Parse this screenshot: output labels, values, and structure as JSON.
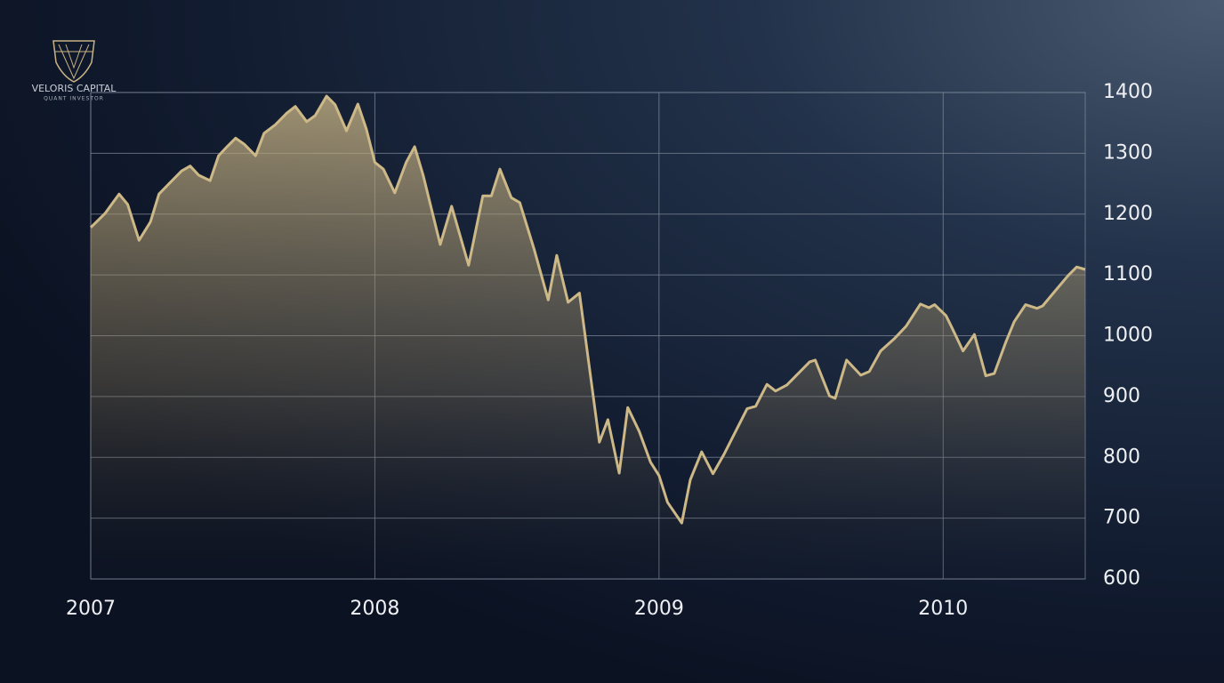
{
  "brand": {
    "name": "VELORIS CAPITAL",
    "tagline": "QUANT INVESTOR"
  },
  "chart_data": {
    "type": "area",
    "x": [
      2007.0,
      2007.05,
      2007.1,
      2007.13,
      2007.17,
      2007.21,
      2007.24,
      2007.28,
      2007.32,
      2007.35,
      2007.38,
      2007.42,
      2007.45,
      2007.48,
      2007.51,
      2007.54,
      2007.58,
      2007.61,
      2007.65,
      2007.69,
      2007.72,
      2007.76,
      2007.79,
      2007.83,
      2007.86,
      2007.9,
      2007.94,
      2007.97,
      2008.0,
      2008.03,
      2008.07,
      2008.11,
      2008.14,
      2008.17,
      2008.23,
      2008.27,
      2008.33,
      2008.38,
      2008.41,
      2008.44,
      2008.48,
      2008.51,
      2008.56,
      2008.61,
      2008.64,
      2008.68,
      2008.72,
      2008.79,
      2008.82,
      2008.86,
      2008.89,
      2008.93,
      2008.97,
      2009.0,
      2009.03,
      2009.08,
      2009.11,
      2009.15,
      2009.19,
      2009.23,
      2009.27,
      2009.31,
      2009.34,
      2009.38,
      2009.41,
      2009.45,
      2009.49,
      2009.53,
      2009.55,
      2009.6,
      2009.62,
      2009.66,
      2009.71,
      2009.74,
      2009.78,
      2009.83,
      2009.87,
      2009.92,
      2009.95,
      2009.97,
      2010.01,
      2010.03,
      2010.07,
      2010.11,
      2010.15,
      2010.18,
      2010.22,
      2010.25,
      2010.29,
      2010.33,
      2010.35,
      2010.4,
      2010.44,
      2010.47,
      2010.5
    ],
    "series": [
      {
        "color": "#cdb887",
        "values": [
          1178,
          1201,
          1233,
          1216,
          1157,
          1187,
          1233,
          1252,
          1271,
          1279,
          1264,
          1255,
          1296,
          1311,
          1325,
          1315,
          1296,
          1333,
          1347,
          1366,
          1377,
          1352,
          1362,
          1394,
          1380,
          1337,
          1381,
          1340,
          1285,
          1274,
          1235,
          1285,
          1311,
          1264,
          1150,
          1213,
          1116,
          1230,
          1230,
          1274,
          1227,
          1219,
          1143,
          1059,
          1132,
          1055,
          1070,
          825,
          862,
          774,
          882,
          843,
          792,
          770,
          726,
          692,
          763,
          809,
          773,
          806,
          843,
          880,
          884,
          920,
          909,
          919,
          938,
          957,
          960,
          901,
          897,
          960,
          935,
          941,
          975,
          996,
          1016,
          1052,
          1046,
          1051,
          1033,
          1014,
          975,
          1002,
          934,
          938,
          989,
          1023,
          1051,
          1045,
          1049,
          1077,
          1099,
          1113,
          1109
        ]
      }
    ],
    "xlim": [
      2007,
      2010.5
    ],
    "xticks": [
      2007,
      2008,
      2009,
      2010
    ],
    "ylim": [
      600,
      1400
    ],
    "yticks": [
      600,
      700,
      800,
      900,
      1000,
      1100,
      1200,
      1300,
      1400
    ],
    "grid": true
  }
}
